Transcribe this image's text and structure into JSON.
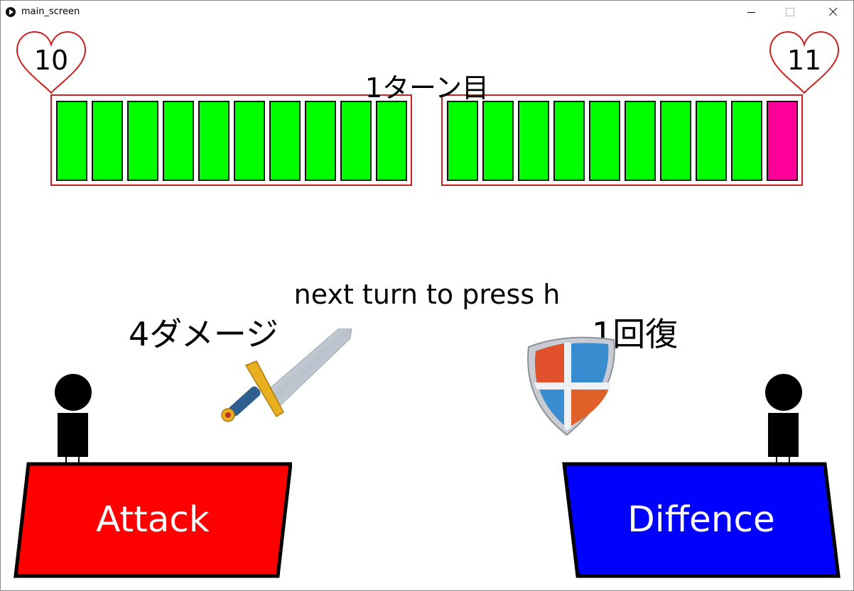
{
  "window": {
    "title": "main_screen"
  },
  "game": {
    "turn_label": "1ターン目",
    "prompt": "next turn to press h",
    "player1": {
      "hp_label": "10",
      "hp_segments": [
        "full",
        "full",
        "full",
        "full",
        "full",
        "full",
        "full",
        "full",
        "full",
        "full"
      ],
      "action_result": "4ダメージ"
    },
    "player2": {
      "hp_label": "11",
      "hp_segments": [
        "full",
        "full",
        "full",
        "full",
        "full",
        "full",
        "full",
        "full",
        "full",
        "extra"
      ],
      "action_result": "1回復"
    },
    "buttons": {
      "attack_label": "Attack",
      "defence_label": "Diffence"
    }
  },
  "colors": {
    "hp_full": "#00ff00",
    "hp_extra": "#ff0099",
    "hp_frame": "#cc2020",
    "heart_outline": "#cc2020",
    "attack": "#ff0000",
    "defence": "#0000ff"
  },
  "icons": {
    "sword": "sword-icon",
    "shield": "shield-icon",
    "heart": "heart-icon"
  }
}
